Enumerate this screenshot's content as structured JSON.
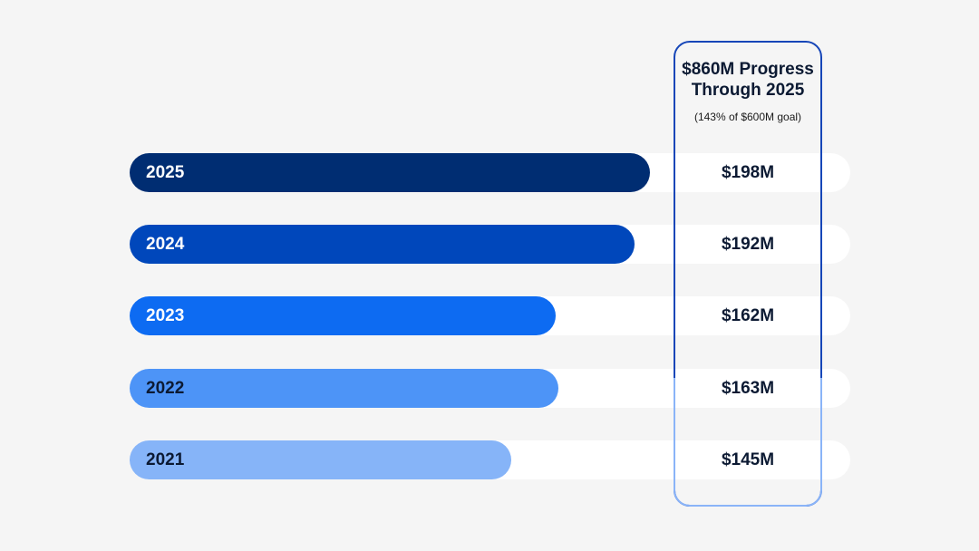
{
  "chart_data": {
    "type": "bar",
    "orientation": "horizontal",
    "categories": [
      "2025",
      "2024",
      "2023",
      "2022",
      "2021"
    ],
    "values": [
      198,
      192,
      162,
      163,
      145
    ],
    "value_labels": [
      "$198M",
      "$192M",
      "$162M",
      "$163M",
      "$145M"
    ],
    "unit": "$M",
    "xlim": [
      0,
      200
    ],
    "bar_colors": [
      "#002d72",
      "#0047bb",
      "#0d6bf2",
      "#4d94f7",
      "#86b4f8"
    ],
    "year_text_colors": [
      "#ffffff",
      "#ffffff",
      "#ffffff",
      "#0c1a33",
      "#0c1a33"
    ],
    "grid": false
  },
  "summary": {
    "title": "$860M Progress Through 2025",
    "subtitle": "(143% of $600M goal)"
  }
}
